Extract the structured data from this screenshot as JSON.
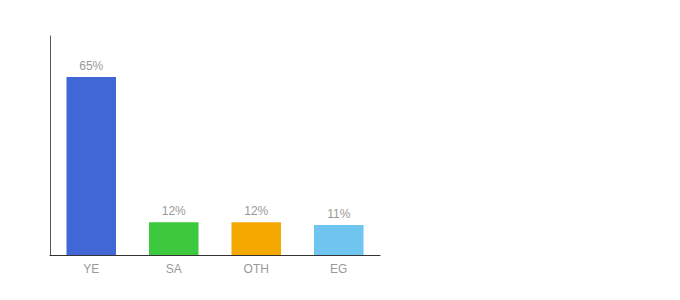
{
  "chart_data": {
    "type": "bar",
    "categories": [
      "YE",
      "SA",
      "OTH",
      "EG"
    ],
    "values": [
      65,
      12,
      12,
      11
    ],
    "value_labels": [
      "65%",
      "12%",
      "12%",
      "11%"
    ],
    "colors": [
      "#4166d5",
      "#3dc93d",
      "#f5a800",
      "#6ec6f0"
    ],
    "ylim": [
      0,
      80
    ],
    "grid": false,
    "data_labels": true,
    "tick_labels": "x"
  }
}
